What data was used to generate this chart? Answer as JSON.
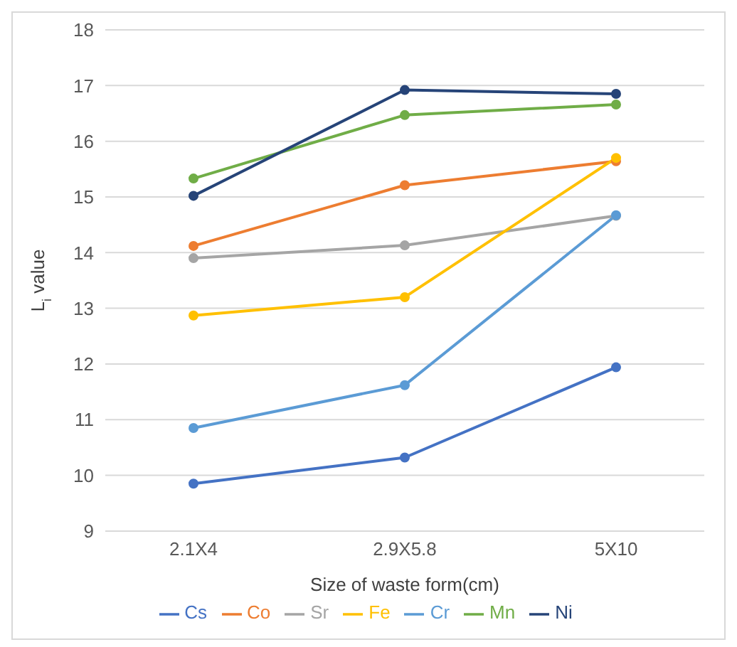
{
  "chart_data": {
    "type": "line",
    "xlabel": "Size of waste form(cm)",
    "ylabel": "L$_{i}$ value",
    "categories": [
      "2.1X4",
      "2.9X5.8",
      "5X10"
    ],
    "series": [
      {
        "name": "Cs",
        "color": "#4472c4",
        "values": [
          9.85,
          10.32,
          11.94
        ]
      },
      {
        "name": "Co",
        "color": "#ed7d31",
        "values": [
          14.12,
          15.21,
          15.64
        ]
      },
      {
        "name": "Sr",
        "color": "#a5a5a5",
        "values": [
          13.9,
          14.13,
          14.66
        ]
      },
      {
        "name": "Fe",
        "color": "#ffc000",
        "values": [
          12.87,
          13.2,
          15.7
        ]
      },
      {
        "name": "Cr",
        "color": "#5b9bd5",
        "values": [
          10.85,
          11.62,
          14.67
        ]
      },
      {
        "name": "Mn",
        "color": "#70ad47",
        "values": [
          15.33,
          16.47,
          16.66
        ]
      },
      {
        "name": "Ni",
        "color": "#264478",
        "values": [
          15.02,
          16.92,
          16.85
        ]
      }
    ],
    "ylim": [
      9,
      18
    ],
    "yticks": [
      9,
      10,
      11,
      12,
      13,
      14,
      15,
      16,
      17,
      18
    ],
    "grid": "y",
    "legend": "bottom",
    "marker": "circle",
    "line_style": "solid"
  }
}
